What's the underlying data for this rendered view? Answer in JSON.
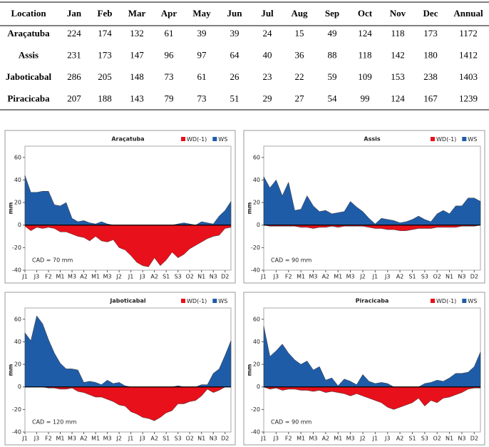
{
  "table": {
    "header": [
      "Location",
      "Jan",
      "Feb",
      "Mar",
      "Apr",
      "May",
      "Jun",
      "Jul",
      "Aug",
      "Sep",
      "Oct",
      "Nov",
      "Dec",
      "Annual"
    ],
    "rows": [
      [
        "Araçatuba",
        224,
        174,
        132,
        61,
        39,
        39,
        24,
        15,
        49,
        124,
        118,
        173,
        1172
      ],
      [
        "Assis",
        231,
        173,
        147,
        96,
        97,
        64,
        40,
        36,
        88,
        118,
        142,
        180,
        1412
      ],
      [
        "Jaboticabal",
        286,
        205,
        148,
        73,
        61,
        26,
        23,
        22,
        59,
        109,
        153,
        238,
        1403
      ],
      [
        "Piracicaba",
        207,
        188,
        143,
        79,
        73,
        51,
        29,
        27,
        54,
        99,
        124,
        167,
        1239
      ]
    ]
  },
  "chart_data": [
    {
      "type": "area",
      "title": "Araçatuba",
      "y_label": "mm",
      "annotation": "CAD = 70 mm",
      "categories": [
        "J1",
        null,
        "J3",
        null,
        "F2",
        null,
        "M1",
        null,
        "M3",
        null,
        "A2",
        null,
        "M1",
        null,
        "M3",
        null,
        "J2",
        null,
        "J1",
        null,
        "J3",
        null,
        "A2",
        null,
        "S1",
        null,
        "S3",
        null,
        "O2",
        null,
        "N1",
        null,
        "N3",
        null,
        "D2",
        null
      ],
      "ylim": [
        -40,
        70
      ],
      "yticks": [
        -40,
        -20,
        0,
        20,
        40,
        60
      ],
      "legend": "top-right",
      "series": [
        {
          "name": "WD(-1)",
          "color": "#e8101a",
          "values": [
            -1,
            -5,
            -2,
            -3,
            -2,
            -3,
            -6,
            -6,
            -8,
            -10,
            -11,
            -14,
            -10,
            -14,
            -15,
            -13,
            -20,
            -22,
            -27,
            -33,
            -36,
            -37,
            -29,
            -36,
            -31,
            -24,
            -29,
            -26,
            -21,
            -18,
            -15,
            -12,
            -10,
            -9,
            -3,
            -2
          ]
        },
        {
          "name": "WS",
          "color": "#1f5ca8",
          "values": [
            44,
            29,
            29,
            30,
            30,
            18,
            17,
            20,
            6,
            3,
            4,
            2,
            1,
            3,
            1,
            0,
            0,
            0,
            0,
            0,
            0,
            0,
            0,
            0,
            0,
            0,
            1,
            2,
            1,
            0,
            3,
            2,
            1,
            8,
            13,
            21
          ]
        }
      ]
    },
    {
      "type": "area",
      "title": "Assis",
      "y_label": "mm",
      "annotation": "CAD = 90 mm",
      "categories": [
        "J1",
        null,
        "J3",
        null,
        "F2",
        null,
        "M1",
        null,
        "M3",
        null,
        "A2",
        null,
        "M1",
        null,
        "M3",
        null,
        "J2",
        null,
        "J1",
        null,
        "J3",
        null,
        "A2",
        null,
        "S1",
        null,
        "S3",
        null,
        "O2",
        null,
        "N1",
        null,
        "N3",
        null,
        "D2",
        null
      ],
      "ylim": [
        -40,
        70
      ],
      "yticks": [
        -40,
        -20,
        0,
        20,
        40,
        60
      ],
      "legend": "top-right",
      "series": [
        {
          "name": "WD(-1)",
          "color": "#e8101a",
          "values": [
            0,
            -1,
            -1,
            -1,
            -1,
            -1,
            -2,
            -2,
            -3,
            -2,
            -2,
            -1,
            -2,
            -1,
            -1,
            -1,
            -1,
            -2,
            -3,
            -3,
            -4,
            -4,
            -5,
            -5,
            -4,
            -3,
            -3,
            -3,
            -2,
            -2,
            -2,
            -2,
            -1,
            -1,
            -1,
            0
          ]
        },
        {
          "name": "WS",
          "color": "#1f5ca8",
          "values": [
            43,
            33,
            40,
            26,
            38,
            13,
            14,
            26,
            17,
            12,
            13,
            10,
            11,
            12,
            21,
            16,
            12,
            6,
            1,
            6,
            5,
            4,
            2,
            3,
            5,
            8,
            5,
            3,
            10,
            13,
            10,
            17,
            17,
            24,
            24,
            21
          ]
        }
      ]
    },
    {
      "type": "area",
      "title": "Jaboticabal",
      "y_label": "mm",
      "annotation": "CAD = 120 mm",
      "categories": [
        "J1",
        null,
        "J3",
        null,
        "F2",
        null,
        "M1",
        null,
        "M3",
        null,
        "A2",
        null,
        "M1",
        null,
        "M3",
        null,
        "J2",
        null,
        "J1",
        null,
        "J3",
        null,
        "A2",
        null,
        "S1",
        null,
        "S3",
        null,
        "O2",
        null,
        "N1",
        null,
        "N3",
        null,
        "D2",
        null
      ],
      "ylim": [
        -40,
        70
      ],
      "yticks": [
        -40,
        -20,
        0,
        20,
        40,
        60
      ],
      "legend": "top-right",
      "series": [
        {
          "name": "WD(-1)",
          "color": "#e8101a",
          "values": [
            0,
            0,
            0,
            0,
            -1,
            -1,
            -2,
            -2,
            -1,
            -4,
            -5,
            -7,
            -9,
            -9,
            -11,
            -13,
            -16,
            -17,
            -22,
            -24,
            -27,
            -28,
            -30,
            -27,
            -23,
            -21,
            -15,
            -15,
            -13,
            -12,
            -8,
            -2,
            -5,
            -3,
            0,
            0
          ]
        },
        {
          "name": "WS",
          "color": "#1f5ca8",
          "values": [
            48,
            41,
            63,
            56,
            42,
            30,
            21,
            16,
            16,
            15,
            4,
            5,
            4,
            2,
            6,
            3,
            4,
            1,
            0,
            0,
            0,
            0,
            0,
            0,
            0,
            0,
            1,
            0,
            0,
            0,
            2,
            2,
            12,
            16,
            28,
            41
          ]
        }
      ]
    },
    {
      "type": "area",
      "title": "Piracicaba",
      "y_label": "mm",
      "annotation": "CAD = 90 mm",
      "categories": [
        "J1",
        null,
        "J3",
        null,
        "F2",
        null,
        "M1",
        null,
        "M3",
        null,
        "A2",
        null,
        "M1",
        null,
        "M3",
        null,
        "J2",
        null,
        "J1",
        null,
        "J3",
        null,
        "A2",
        null,
        "S1",
        null,
        "S3",
        null,
        "O2",
        null,
        "N1",
        null,
        "N3",
        null,
        "D2",
        null
      ],
      "ylim": [
        -40,
        70
      ],
      "yticks": [
        -40,
        -20,
        0,
        20,
        40,
        60
      ],
      "legend": "top-right",
      "series": [
        {
          "name": "WD(-1)",
          "color": "#e8101a",
          "values": [
            0,
            -2,
            -1,
            -3,
            -2,
            -2,
            -3,
            -3,
            -4,
            -3,
            -5,
            -4,
            -5,
            -6,
            -8,
            -6,
            -8,
            -10,
            -12,
            -14,
            -18,
            -20,
            -18,
            -16,
            -14,
            -10,
            -17,
            -12,
            -14,
            -10,
            -9,
            -7,
            -5,
            -2,
            -1,
            -1
          ]
        },
        {
          "name": "WS",
          "color": "#1f5ca8",
          "values": [
            54,
            27,
            32,
            38,
            30,
            24,
            20,
            23,
            15,
            18,
            6,
            8,
            1,
            7,
            5,
            2,
            11,
            5,
            3,
            4,
            3,
            0,
            0,
            0,
            0,
            0,
            3,
            4,
            6,
            5,
            8,
            12,
            12,
            13,
            18,
            31
          ]
        }
      ]
    }
  ]
}
